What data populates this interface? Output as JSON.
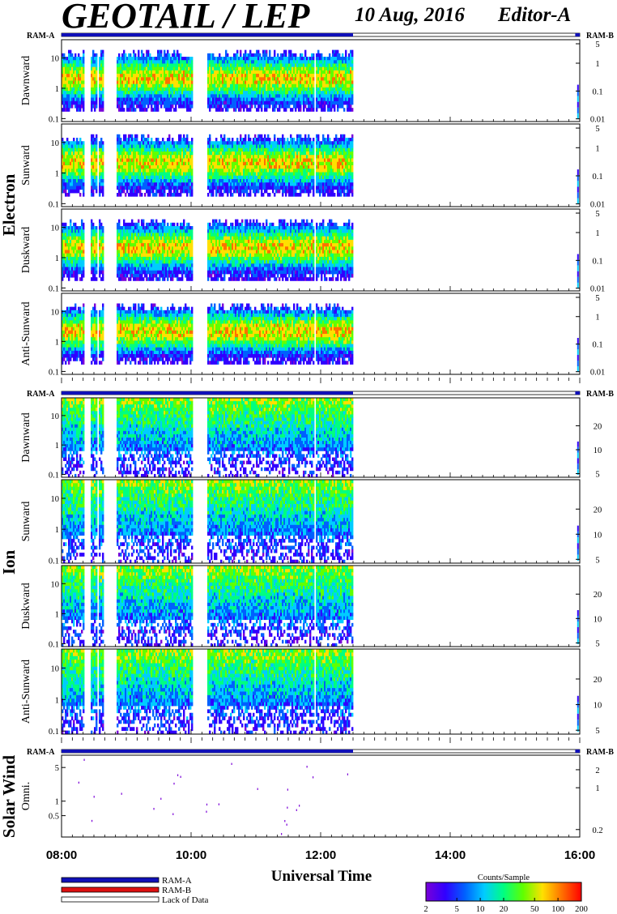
{
  "header": {
    "title": "GEOTAIL / LEP",
    "date": "10 Aug, 2016",
    "editor": "Editor-A"
  },
  "colors": {
    "ram_a": "#1010b8",
    "ram_b": "#dd1010",
    "lack_of_data": "#ffffff",
    "spectrogram_scale": [
      "#7a00d8",
      "#3000ff",
      "#0060ff",
      "#00ccff",
      "#00ff80",
      "#60ff00",
      "#ffe000",
      "#ff7000",
      "#ff0000"
    ]
  },
  "chart_data": {
    "type": "heatmap",
    "x_axis": {
      "label": "Universal Time",
      "ticks": [
        "08:00",
        "10:00",
        "12:00",
        "14:00",
        "16:00"
      ],
      "range_hours": [
        8,
        16
      ]
    },
    "mode_bar_label_left": "RAM-A",
    "mode_bar_label_right": "RAM-B",
    "groups": [
      {
        "name": "Electron",
        "mode_bar": {
          "ram_a_hours": [
            8,
            12.5
          ],
          "ram_b_hours": [
            15.93,
            16
          ]
        },
        "left_ticks": [
          "10",
          "1",
          "0.1"
        ],
        "left_tick_values": [
          10,
          1,
          0.1
        ],
        "left_range": [
          0.08,
          40
        ],
        "right_ticks": [
          "5",
          "1",
          "0.1",
          "0.01"
        ],
        "right_tick_values": [
          5,
          1,
          0.1,
          0.01
        ],
        "right_range": [
          0.008,
          7
        ],
        "panels": [
          {
            "label": "Dawnward",
            "data_hours": [
              8,
              12.5
            ]
          },
          {
            "label": "Sunward",
            "data_hours": [
              8,
              12.5
            ]
          },
          {
            "label": "Duskward",
            "data_hours": [
              8,
              12.5
            ]
          },
          {
            "label": "Anti-Sunward",
            "data_hours": [
              8,
              12.5
            ]
          }
        ]
      },
      {
        "name": "Ion",
        "mode_bar": {
          "ram_a_hours": [
            8,
            12.5
          ],
          "ram_b_hours": [
            15.93,
            16
          ]
        },
        "left_ticks": [
          "10",
          "1",
          "0.1"
        ],
        "left_tick_values": [
          10,
          1,
          0.1
        ],
        "left_range": [
          0.08,
          40
        ],
        "right_ticks": [
          "20",
          "10",
          "5"
        ],
        "right_tick_values": [
          20,
          10,
          5
        ],
        "right_range": [
          4.5,
          45
        ],
        "panels": [
          {
            "label": "Dawnward",
            "data_hours": [
              8,
              12.5
            ]
          },
          {
            "label": "Sunward",
            "data_hours": [
              8,
              12.5
            ]
          },
          {
            "label": "Duskward",
            "data_hours": [
              8,
              12.5
            ]
          },
          {
            "label": "Anti-Sunward",
            "data_hours": [
              8,
              12.5
            ]
          }
        ]
      },
      {
        "name": "Solar Wind",
        "mode_bar": {
          "ram_a_hours": [
            8,
            12.5
          ],
          "ram_b_hours": [
            15.93,
            16
          ]
        },
        "left_ticks": [
          "5",
          "1",
          "0.5"
        ],
        "left_tick_values": [
          5,
          1,
          0.5
        ],
        "left_range": [
          0.18,
          9
        ],
        "right_ticks": [
          "2",
          "1",
          "0.2"
        ],
        "right_tick_values": [
          2,
          1,
          0.2
        ],
        "right_range": [
          0.15,
          3.5
        ],
        "panels": [
          {
            "label": "Omni.",
            "data_hours": [
              8,
              12.5
            ]
          }
        ]
      }
    ],
    "data_gaps_hours": [
      [
        8.35,
        8.45
      ],
      [
        8.56,
        8.58
      ],
      [
        8.65,
        8.85
      ],
      [
        10.03,
        10.25
      ],
      [
        11.9,
        11.92
      ]
    ],
    "color_scale": {
      "title": "Counts/Sample",
      "ticks": [
        "2",
        "5",
        "10",
        "20",
        "50",
        "100",
        "200"
      ],
      "tick_values": [
        2,
        5,
        10,
        20,
        50,
        100,
        200
      ],
      "range": [
        2,
        200
      ]
    },
    "legend": [
      {
        "label": "RAM-A",
        "color": "#1010b8"
      },
      {
        "label": "RAM-B",
        "color": "#dd1010"
      },
      {
        "label": "Lack of Data",
        "color": "#ffffff"
      }
    ]
  }
}
